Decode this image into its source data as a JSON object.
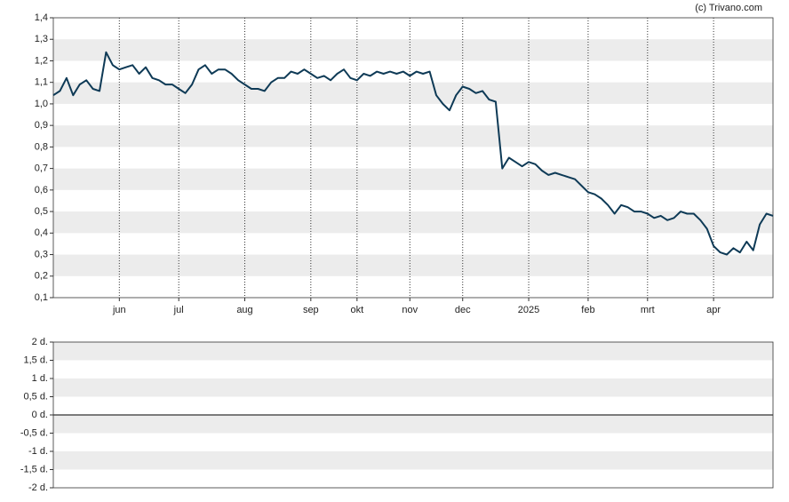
{
  "chart_data": [
    {
      "type": "line",
      "source": "(c) Trivano.com",
      "categories": [
        null,
        null,
        null,
        null,
        null,
        null,
        null,
        null,
        null,
        null,
        "jun",
        null,
        null,
        null,
        null,
        null,
        null,
        null,
        null,
        "jul",
        null,
        null,
        null,
        null,
        null,
        null,
        null,
        null,
        null,
        "aug",
        null,
        null,
        null,
        null,
        null,
        null,
        null,
        null,
        null,
        "sep",
        null,
        null,
        null,
        null,
        null,
        null,
        "okt",
        null,
        null,
        null,
        null,
        null,
        null,
        null,
        "nov",
        null,
        null,
        null,
        null,
        null,
        null,
        null,
        "dec",
        null,
        null,
        null,
        null,
        null,
        null,
        null,
        null,
        null,
        "2025",
        null,
        null,
        null,
        null,
        null,
        null,
        null,
        null,
        "feb",
        null,
        null,
        null,
        null,
        null,
        null,
        null,
        null,
        "mrt",
        null,
        null,
        null,
        null,
        null,
        null,
        null,
        null,
        null,
        "apr",
        null,
        null,
        null,
        null,
        null,
        null,
        null,
        null,
        null
      ],
      "series": [
        {
          "color": "#0e3a56",
          "values": [
            1.04,
            1.06,
            1.12,
            1.04,
            1.09,
            1.11,
            1.07,
            1.06,
            1.24,
            1.18,
            1.16,
            1.17,
            1.18,
            1.14,
            1.17,
            1.12,
            1.11,
            1.09,
            1.09,
            1.07,
            1.05,
            1.09,
            1.16,
            1.18,
            1.14,
            1.16,
            1.16,
            1.14,
            1.11,
            1.09,
            1.07,
            1.07,
            1.06,
            1.1,
            1.12,
            1.12,
            1.15,
            1.14,
            1.16,
            1.14,
            1.12,
            1.13,
            1.11,
            1.14,
            1.16,
            1.12,
            1.11,
            1.14,
            1.13,
            1.15,
            1.14,
            1.15,
            1.14,
            1.15,
            1.13,
            1.15,
            1.14,
            1.15,
            1.04,
            1.0,
            0.97,
            1.04,
            1.08,
            1.07,
            1.05,
            1.06,
            1.02,
            1.01,
            0.7,
            0.75,
            0.73,
            0.71,
            0.73,
            0.72,
            0.69,
            0.67,
            0.68,
            0.67,
            0.66,
            0.65,
            0.62,
            0.59,
            0.58,
            0.56,
            0.53,
            0.49,
            0.53,
            0.52,
            0.5,
            0.5,
            0.49,
            0.47,
            0.48,
            0.46,
            0.47,
            0.5,
            0.49,
            0.49,
            0.46,
            0.42,
            0.34,
            0.31,
            0.3,
            0.33,
            0.31,
            0.36,
            0.32,
            0.44,
            0.49,
            0.48
          ]
        }
      ],
      "ylim": [
        0.1,
        1.4
      ],
      "yticks": [
        {
          "value": 0.1,
          "label": "0,1"
        },
        {
          "value": 0.2,
          "label": "0,2"
        },
        {
          "value": 0.3,
          "label": "0,3"
        },
        {
          "value": 0.4,
          "label": "0,4"
        },
        {
          "value": 0.5,
          "label": "0,5"
        },
        {
          "value": 0.6,
          "label": "0,6"
        },
        {
          "value": 0.7,
          "label": "0,7"
        },
        {
          "value": 0.8,
          "label": "0,8"
        },
        {
          "value": 0.9,
          "label": "0,9"
        },
        {
          "value": 1.0,
          "label": "1,0"
        },
        {
          "value": 1.1,
          "label": "1,1"
        },
        {
          "value": 1.2,
          "label": "1,2"
        },
        {
          "value": 1.3,
          "label": "1,3"
        },
        {
          "value": 1.4,
          "label": "1,4"
        }
      ],
      "grid": true
    },
    {
      "type": "line",
      "ylim": [
        -2,
        2
      ],
      "yticks": [
        {
          "value": -2,
          "label": "-2 d."
        },
        {
          "value": -1.5,
          "label": "-1,5 d."
        },
        {
          "value": -1,
          "label": "-1 d."
        },
        {
          "value": -0.5,
          "label": "-0,5 d."
        },
        {
          "value": 0,
          "label": "0 d."
        },
        {
          "value": 0.5,
          "label": "0,5 d."
        },
        {
          "value": 1,
          "label": "1 d."
        },
        {
          "value": 1.5,
          "label": "1,5 d."
        },
        {
          "value": 2,
          "label": "2 d."
        }
      ]
    }
  ]
}
